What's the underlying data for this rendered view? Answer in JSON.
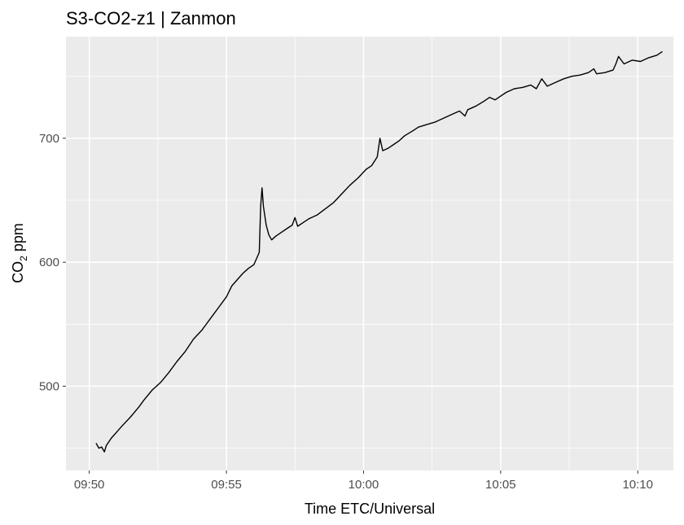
{
  "chart_data": {
    "type": "line",
    "title": "S3-CO2-z1 | Zanmon",
    "xlabel": "Time ETC/Universal",
    "ylabel_parts": {
      "main": "CO",
      "subscript": "2",
      "unit": " ppm"
    },
    "x_unit": "minutes after 09:50",
    "xlim": [
      -0.85,
      21.3
    ],
    "ylim": [
      432,
      782
    ],
    "x_ticks": [
      {
        "value": 0,
        "label": "09:50"
      },
      {
        "value": 5,
        "label": "09:55"
      },
      {
        "value": 10,
        "label": "10:00"
      },
      {
        "value": 15,
        "label": "10:05"
      },
      {
        "value": 20,
        "label": "10:10"
      }
    ],
    "y_ticks": [
      {
        "value": 500,
        "label": "500"
      },
      {
        "value": 600,
        "label": "600"
      },
      {
        "value": 700,
        "label": "700"
      }
    ],
    "x_minor": [
      2.5,
      7.5,
      12.5,
      17.5
    ],
    "y_minor": [
      450,
      550,
      650,
      750
    ],
    "grid": true,
    "panel_color": "#ebebeb",
    "grid_color": "#ffffff",
    "line_color": "#000000",
    "series": [
      {
        "points": [
          [
            0.25,
            454
          ],
          [
            0.35,
            450
          ],
          [
            0.45,
            451
          ],
          [
            0.55,
            447
          ],
          [
            0.62,
            452
          ],
          [
            0.8,
            458
          ],
          [
            1.0,
            463
          ],
          [
            1.2,
            468
          ],
          [
            1.5,
            475
          ],
          [
            1.8,
            483
          ],
          [
            2.0,
            489
          ],
          [
            2.3,
            497
          ],
          [
            2.6,
            503
          ],
          [
            2.9,
            511
          ],
          [
            3.2,
            520
          ],
          [
            3.5,
            528
          ],
          [
            3.8,
            538
          ],
          [
            4.1,
            545
          ],
          [
            4.4,
            554
          ],
          [
            4.7,
            563
          ],
          [
            5.0,
            572
          ],
          [
            5.2,
            581
          ],
          [
            5.4,
            586
          ],
          [
            5.6,
            591
          ],
          [
            5.8,
            595
          ],
          [
            6.0,
            598
          ],
          [
            6.1,
            603
          ],
          [
            6.2,
            608
          ],
          [
            6.25,
            645
          ],
          [
            6.3,
            660
          ],
          [
            6.35,
            645
          ],
          [
            6.45,
            630
          ],
          [
            6.55,
            622
          ],
          [
            6.65,
            618
          ],
          [
            6.8,
            621
          ],
          [
            7.0,
            624
          ],
          [
            7.2,
            627
          ],
          [
            7.4,
            630
          ],
          [
            7.5,
            636
          ],
          [
            7.6,
            629
          ],
          [
            7.8,
            632
          ],
          [
            8.0,
            635
          ],
          [
            8.3,
            638
          ],
          [
            8.6,
            643
          ],
          [
            8.9,
            648
          ],
          [
            9.2,
            655
          ],
          [
            9.5,
            662
          ],
          [
            9.8,
            668
          ],
          [
            10.1,
            675
          ],
          [
            10.3,
            678
          ],
          [
            10.5,
            685
          ],
          [
            10.6,
            700
          ],
          [
            10.7,
            690
          ],
          [
            10.9,
            692
          ],
          [
            11.1,
            695
          ],
          [
            11.3,
            698
          ],
          [
            11.5,
            702
          ],
          [
            11.8,
            706
          ],
          [
            12.0,
            709
          ],
          [
            12.3,
            711
          ],
          [
            12.6,
            713
          ],
          [
            12.9,
            716
          ],
          [
            13.2,
            719
          ],
          [
            13.5,
            722
          ],
          [
            13.7,
            718
          ],
          [
            13.8,
            723
          ],
          [
            14.1,
            726
          ],
          [
            14.4,
            730
          ],
          [
            14.6,
            733
          ],
          [
            14.8,
            731
          ],
          [
            15.0,
            734
          ],
          [
            15.2,
            737
          ],
          [
            15.5,
            740
          ],
          [
            15.8,
            741
          ],
          [
            16.1,
            743
          ],
          [
            16.3,
            740
          ],
          [
            16.5,
            748
          ],
          [
            16.7,
            742
          ],
          [
            17.0,
            745
          ],
          [
            17.3,
            748
          ],
          [
            17.6,
            750
          ],
          [
            17.9,
            751
          ],
          [
            18.2,
            753
          ],
          [
            18.4,
            756
          ],
          [
            18.5,
            752
          ],
          [
            18.8,
            753
          ],
          [
            19.1,
            755
          ],
          [
            19.2,
            760
          ],
          [
            19.3,
            766
          ],
          [
            19.5,
            760
          ],
          [
            19.8,
            763
          ],
          [
            20.1,
            762
          ],
          [
            20.4,
            765
          ],
          [
            20.7,
            767
          ],
          [
            20.9,
            770
          ]
        ]
      }
    ]
  }
}
